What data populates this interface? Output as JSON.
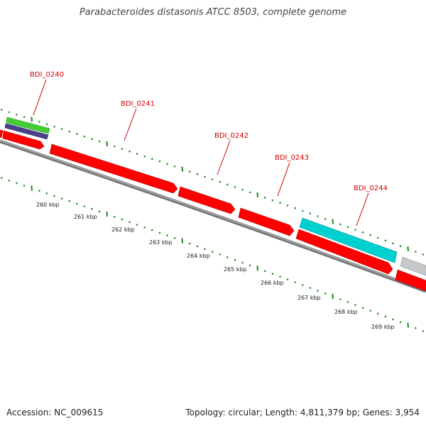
{
  "title": "Parabacteroides distasonis ATCC 8503, complete genome",
  "accession": "Accession: NC_009615",
  "topology": "Topology: circular; Length: 4,811,379 bp; Genes: 3,954",
  "colors": {
    "cds": "#ff0000",
    "highlight": "#00d0d0",
    "other": "#c8c8c8",
    "green_feature": "#44cc33",
    "purple_feature": "#4a3f8a",
    "backbone": "#777777",
    "tick": "#1a8a1a",
    "label": "#d40000"
  },
  "gene_labels": [
    "BDI_0240",
    "BDI_0241",
    "BDI_0242",
    "BDI_0243",
    "BDI_0244"
  ],
  "kbp_ticks": [
    "260 kbp",
    "261 kbp",
    "262 kbp",
    "263 kbp",
    "264 kbp",
    "265 kbp",
    "266 kbp",
    "267 kbp",
    "268 kbp",
    "269 kbp"
  ]
}
